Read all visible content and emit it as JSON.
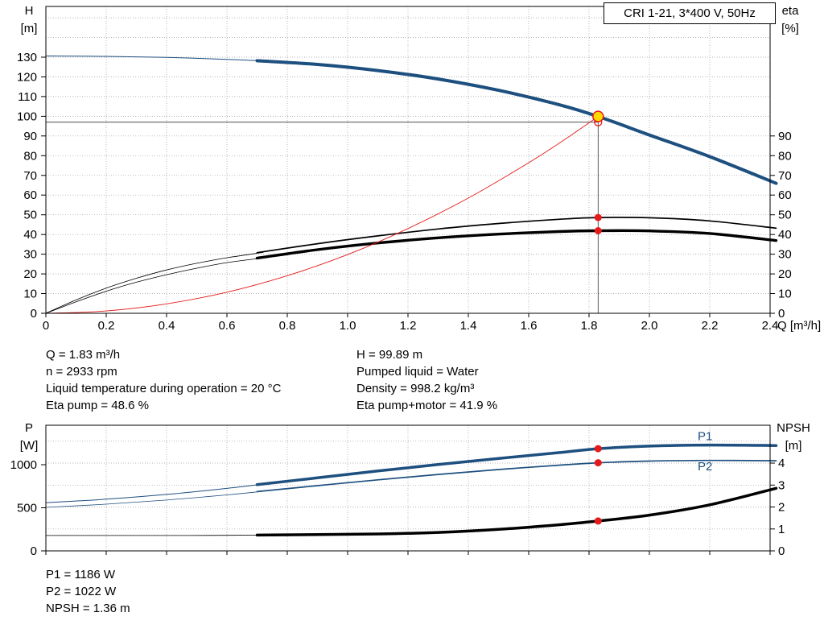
{
  "colors": {
    "blue": "#1d4f7f",
    "black": "#000000",
    "red": "#e51a1a",
    "yellow": "#ffd800",
    "grid": "#9a9a9a",
    "duty": "#333333"
  },
  "info_top": {
    "left": [
      "Q = 1.83 m³/h",
      "n = 2933 rpm",
      "Liquid temperature during operation = 20 °C",
      "Eta pump = 48.6 %"
    ],
    "right": [
      "H = 99.89 m",
      "Pumped liquid = Water",
      "Density = 998.2 kg/m³",
      "Eta pump+motor = 41.9 %"
    ]
  },
  "info_bottom": [
    "P1 = 1186 W",
    "P2 = 1022 W",
    "NPSH = 1.36 m"
  ],
  "chart_data": [
    {
      "type": "line",
      "title": "CRI 1-21, 3*400 V, 50Hz",
      "x_axis": {
        "label": "Q [m³/h]",
        "min": 0,
        "max": 2.4,
        "tick_labels": [
          "0",
          "0.2",
          "0.4",
          "0.6",
          "0.8",
          "1.0",
          "1.2",
          "1.4",
          "1.6",
          "1.8",
          "2.0",
          "2.2",
          "2.4"
        ]
      },
      "y_left": {
        "label": "H",
        "unit": "[m]",
        "min": 0,
        "max": 155,
        "ticks": [
          0,
          10,
          20,
          30,
          40,
          50,
          60,
          70,
          80,
          90,
          100,
          110,
          120,
          130
        ]
      },
      "y_right": {
        "label": "eta",
        "unit": "[%]",
        "min": 0,
        "max": 155,
        "ticks": [
          0,
          10,
          20,
          30,
          40,
          50,
          60,
          70,
          80,
          90
        ]
      },
      "duty_point": {
        "q": 1.83,
        "h": 99.89,
        "h_ref": 97
      },
      "series": [
        {
          "name": "hq-lead",
          "color": "blue",
          "width": 1,
          "points": [
            [
              0,
              130.6
            ],
            [
              0.2,
              130.4
            ],
            [
              0.4,
              129.9
            ],
            [
              0.6,
              128.9
            ],
            [
              0.72,
              128.1
            ]
          ]
        },
        {
          "name": "hq",
          "color": "blue",
          "width": 4,
          "points": [
            [
              0.7,
              128.2
            ],
            [
              0.9,
              126.3
            ],
            [
              1.1,
              123.2
            ],
            [
              1.3,
              118.9
            ],
            [
              1.5,
              113.2
            ],
            [
              1.7,
              105.9
            ],
            [
              1.83,
              99.89
            ],
            [
              2.0,
              90.5
            ],
            [
              2.2,
              79.5
            ],
            [
              2.42,
              66
            ]
          ]
        },
        {
          "name": "eta-pump-lead",
          "color": "black",
          "width": 0.8,
          "points": [
            [
              0,
              0
            ],
            [
              0.1,
              6.8
            ],
            [
              0.2,
              12.8
            ],
            [
              0.3,
              17.8
            ],
            [
              0.4,
              22
            ],
            [
              0.5,
              25.4
            ],
            [
              0.6,
              28.2
            ],
            [
              0.72,
              30.9
            ]
          ]
        },
        {
          "name": "eta-pump",
          "color": "black",
          "width": 1.7,
          "points": [
            [
              0.7,
              30.8
            ],
            [
              0.9,
              35.3
            ],
            [
              1.1,
              39.3
            ],
            [
              1.3,
              42.8
            ],
            [
              1.5,
              45.6
            ],
            [
              1.7,
              47.7
            ],
            [
              1.83,
              48.6
            ],
            [
              2.0,
              48.5
            ],
            [
              2.2,
              46.9
            ],
            [
              2.42,
              43.2
            ]
          ]
        },
        {
          "name": "eta-pump-motor-lead",
          "color": "black",
          "width": 0.8,
          "points": [
            [
              0,
              0
            ],
            [
              0.1,
              5.8
            ],
            [
              0.2,
              11.2
            ],
            [
              0.3,
              15.8
            ],
            [
              0.4,
              19.6
            ],
            [
              0.5,
              22.9
            ],
            [
              0.6,
              25.7
            ],
            [
              0.72,
              28.1
            ]
          ]
        },
        {
          "name": "eta-pump-motor",
          "color": "black",
          "width": 3.4,
          "points": [
            [
              0.7,
              28
            ],
            [
              0.9,
              32.3
            ],
            [
              1.1,
              35.7
            ],
            [
              1.3,
              38.3
            ],
            [
              1.5,
              40.2
            ],
            [
              1.7,
              41.5
            ],
            [
              1.83,
              41.9
            ],
            [
              2.0,
              41.8
            ],
            [
              2.2,
              40.5
            ],
            [
              2.42,
              36.9
            ]
          ]
        },
        {
          "name": "system-curve",
          "color": "red",
          "width": 0.9,
          "points": [
            [
              0,
              0
            ],
            [
              0.2,
              1.2
            ],
            [
              0.4,
              4.8
            ],
            [
              0.6,
              10.7
            ],
            [
              0.8,
              19.1
            ],
            [
              1.0,
              29.8
            ],
            [
              1.2,
              43
            ],
            [
              1.4,
              58.5
            ],
            [
              1.6,
              76.4
            ],
            [
              1.7,
              86.2
            ],
            [
              1.8,
              96.7
            ],
            [
              1.83,
              99.89
            ]
          ]
        }
      ],
      "markers": [
        {
          "name": "requested-duty-point",
          "shape": "open-circle",
          "q": 1.83,
          "v": 97
        },
        {
          "name": "duty-point",
          "shape": "duty",
          "q": 1.83,
          "v": 99.89
        },
        {
          "name": "eta-pump-point",
          "shape": "dot",
          "q": 1.83,
          "v": 48.6
        },
        {
          "name": "eta-pump-motor-point",
          "shape": "dot",
          "q": 1.83,
          "v": 41.9
        }
      ]
    },
    {
      "type": "line",
      "x_axis": {
        "min": 0,
        "max": 2.4
      },
      "y_left": {
        "label": "P",
        "unit": "[W]",
        "min": 0,
        "max": 1458,
        "ticks": [
          0,
          500,
          1000
        ]
      },
      "y_right": {
        "label": "NPSH",
        "unit": "[m]",
        "min": 0,
        "max": 5.7,
        "ticks": [
          0,
          1,
          2,
          3,
          4
        ]
      },
      "series": [
        {
          "name": "p1-lead",
          "axis": "P",
          "color": "blue",
          "width": 1,
          "points": [
            [
              0,
              560
            ],
            [
              0.2,
              600
            ],
            [
              0.4,
              655
            ],
            [
              0.6,
              725
            ],
            [
              0.72,
              775
            ]
          ]
        },
        {
          "name": "p1",
          "axis": "P",
          "color": "blue",
          "width": 3.5,
          "points": [
            [
              0.7,
              768
            ],
            [
              0.9,
              848
            ],
            [
              1.1,
              927
            ],
            [
              1.3,
              1002
            ],
            [
              1.5,
              1072
            ],
            [
              1.7,
              1140
            ],
            [
              1.83,
              1186
            ],
            [
              2.0,
              1216
            ],
            [
              2.2,
              1228
            ],
            [
              2.42,
              1222
            ]
          ]
        },
        {
          "name": "p2-lead",
          "axis": "P",
          "color": "blue",
          "width": 0.8,
          "points": [
            [
              0,
              505
            ],
            [
              0.2,
              542
            ],
            [
              0.4,
              590
            ],
            [
              0.6,
              650
            ],
            [
              0.72,
              692
            ]
          ]
        },
        {
          "name": "p2",
          "axis": "P",
          "color": "blue",
          "width": 1.7,
          "points": [
            [
              0.7,
              688
            ],
            [
              0.9,
              757
            ],
            [
              1.1,
              824
            ],
            [
              1.3,
              887
            ],
            [
              1.5,
              944
            ],
            [
              1.7,
              994
            ],
            [
              1.83,
              1022
            ],
            [
              2.0,
              1042
            ],
            [
              2.2,
              1050
            ],
            [
              2.42,
              1046
            ]
          ]
        },
        {
          "name": "npsh-lead",
          "axis": "N",
          "color": "black",
          "width": 0.8,
          "points": [
            [
              0,
              0.7
            ],
            [
              0.2,
              0.7
            ],
            [
              0.4,
              0.7
            ],
            [
              0.6,
              0.71
            ],
            [
              0.72,
              0.72
            ]
          ]
        },
        {
          "name": "npsh",
          "axis": "N",
          "color": "black",
          "width": 3.5,
          "points": [
            [
              0.7,
              0.72
            ],
            [
              0.9,
              0.74
            ],
            [
              1.1,
              0.77
            ],
            [
              1.3,
              0.84
            ],
            [
              1.5,
              0.98
            ],
            [
              1.7,
              1.19
            ],
            [
              1.83,
              1.36
            ],
            [
              2.0,
              1.63
            ],
            [
              2.2,
              2.1
            ],
            [
              2.42,
              2.85
            ]
          ]
        }
      ],
      "markers": [
        {
          "name": "p1-point",
          "axis": "P",
          "q": 1.83,
          "v": 1186
        },
        {
          "name": "p2-point",
          "axis": "P",
          "q": 1.83,
          "v": 1022
        },
        {
          "name": "npsh-point",
          "axis": "N",
          "q": 1.83,
          "v": 1.36
        }
      ],
      "annotations": [
        {
          "text": "P1",
          "q": 2.16,
          "v": 1330,
          "axis": "P"
        },
        {
          "text": "P2",
          "q": 2.16,
          "v": 980,
          "axis": "P"
        }
      ]
    }
  ]
}
